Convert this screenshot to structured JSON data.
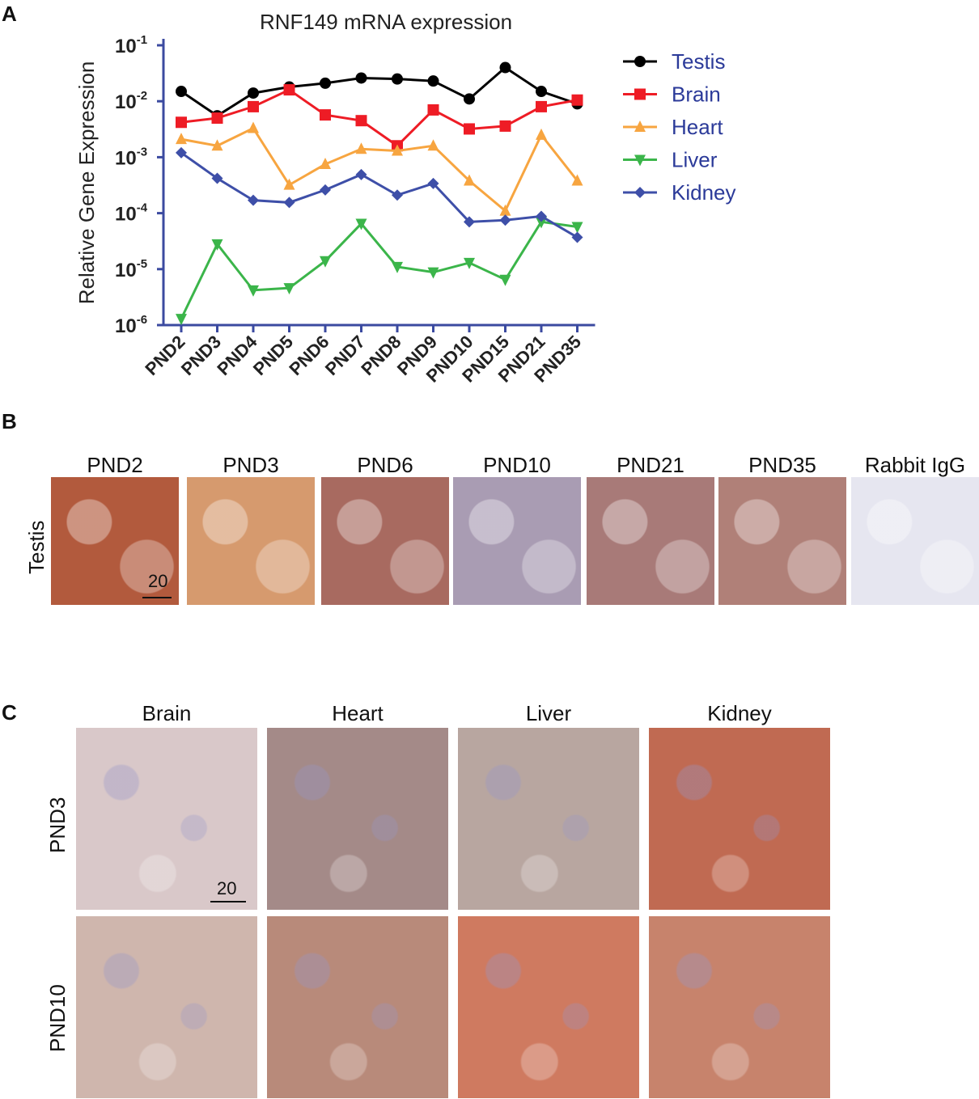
{
  "panels": {
    "a": "A",
    "b": "B",
    "c": "C"
  },
  "chart_data": {
    "type": "line",
    "title": "RNF149 mRNA expression",
    "ylabel": "Relative Gene Expression",
    "xlabel": "",
    "yscale": "log",
    "ylim": [
      1e-06,
      0.1
    ],
    "ytick_labels": [
      {
        "base": "10",
        "exp": "-1",
        "value": 0.1
      },
      {
        "base": "10",
        "exp": "-2",
        "value": 0.01
      },
      {
        "base": "10",
        "exp": "-3",
        "value": 0.001
      },
      {
        "base": "10",
        "exp": "-4",
        "value": 0.0001
      },
      {
        "base": "10",
        "exp": "-5",
        "value": 1e-05
      },
      {
        "base": "10",
        "exp": "-6",
        "value": 1e-06
      }
    ],
    "categories": [
      "PND2",
      "PND3",
      "PND4",
      "PND5",
      "PND6",
      "PND7",
      "PND8",
      "PND9",
      "PND10",
      "PND15",
      "PND21",
      "PND35"
    ],
    "legend_position": "right",
    "series": [
      {
        "name": "Testis",
        "color": "#000000",
        "marker": "circle",
        "values": [
          0.015,
          0.0055,
          0.014,
          0.018,
          0.021,
          0.026,
          0.025,
          0.023,
          0.011,
          0.04,
          0.015,
          0.009
        ]
      },
      {
        "name": "Brain",
        "color": "#ee1c25",
        "marker": "square",
        "values": [
          0.0042,
          0.005,
          0.008,
          0.016,
          0.0057,
          0.0045,
          0.0016,
          0.007,
          0.0032,
          0.0036,
          0.008,
          0.0105
        ]
      },
      {
        "name": "Heart",
        "color": "#f7a540",
        "marker": "triangle-up",
        "values": [
          0.0021,
          0.0016,
          0.0033,
          0.00032,
          0.00075,
          0.0014,
          0.0013,
          0.0016,
          0.00038,
          0.00011,
          0.0025,
          0.00038
        ]
      },
      {
        "name": "Liver",
        "color": "#3bb54a",
        "marker": "triangle-down",
        "values": [
          1.3e-06,
          2.8e-05,
          4.2e-06,
          4.6e-06,
          1.4e-05,
          6.5e-05,
          1.1e-05,
          8.8e-06,
          1.3e-05,
          6.5e-06,
          7e-05,
          5.7e-05
        ]
      },
      {
        "name": "Kidney",
        "color": "#3e4fa8",
        "marker": "diamond",
        "values": [
          0.0012,
          0.00042,
          0.00017,
          0.000155,
          0.00026,
          0.00049,
          0.00021,
          0.00034,
          7e-05,
          7.5e-05,
          8.8e-05,
          3.7e-05
        ]
      }
    ]
  },
  "panel_b": {
    "row_label": "Testis",
    "tiles": [
      {
        "label": "PND2",
        "tone": "#b25a3d",
        "scale": "20"
      },
      {
        "label": "PND3",
        "tone": "#d69a6e",
        "scale": ""
      },
      {
        "label": "PND6",
        "tone": "#a86a60",
        "scale": ""
      },
      {
        "label": "PND10",
        "tone": "#a99cb3",
        "scale": ""
      },
      {
        "label": "PND21",
        "tone": "#a87a78",
        "scale": ""
      },
      {
        "label": "PND35",
        "tone": "#b08078",
        "scale": ""
      },
      {
        "label": "Rabbit IgG",
        "tone": "#e6e6f0",
        "scale": ""
      }
    ]
  },
  "panel_c": {
    "columns": [
      "Brain",
      "Heart",
      "Liver",
      "Kidney"
    ],
    "rows": [
      {
        "label": "PND3",
        "tones": [
          "#d9c8c9",
          "#a48a88",
          "#b8a6a0",
          "#c06a52"
        ],
        "scale": "20"
      },
      {
        "label": "PND10",
        "tones": [
          "#cfb6ad",
          "#b88a7a",
          "#cf7a60",
          "#c7836c"
        ],
        "scale": ""
      }
    ]
  }
}
